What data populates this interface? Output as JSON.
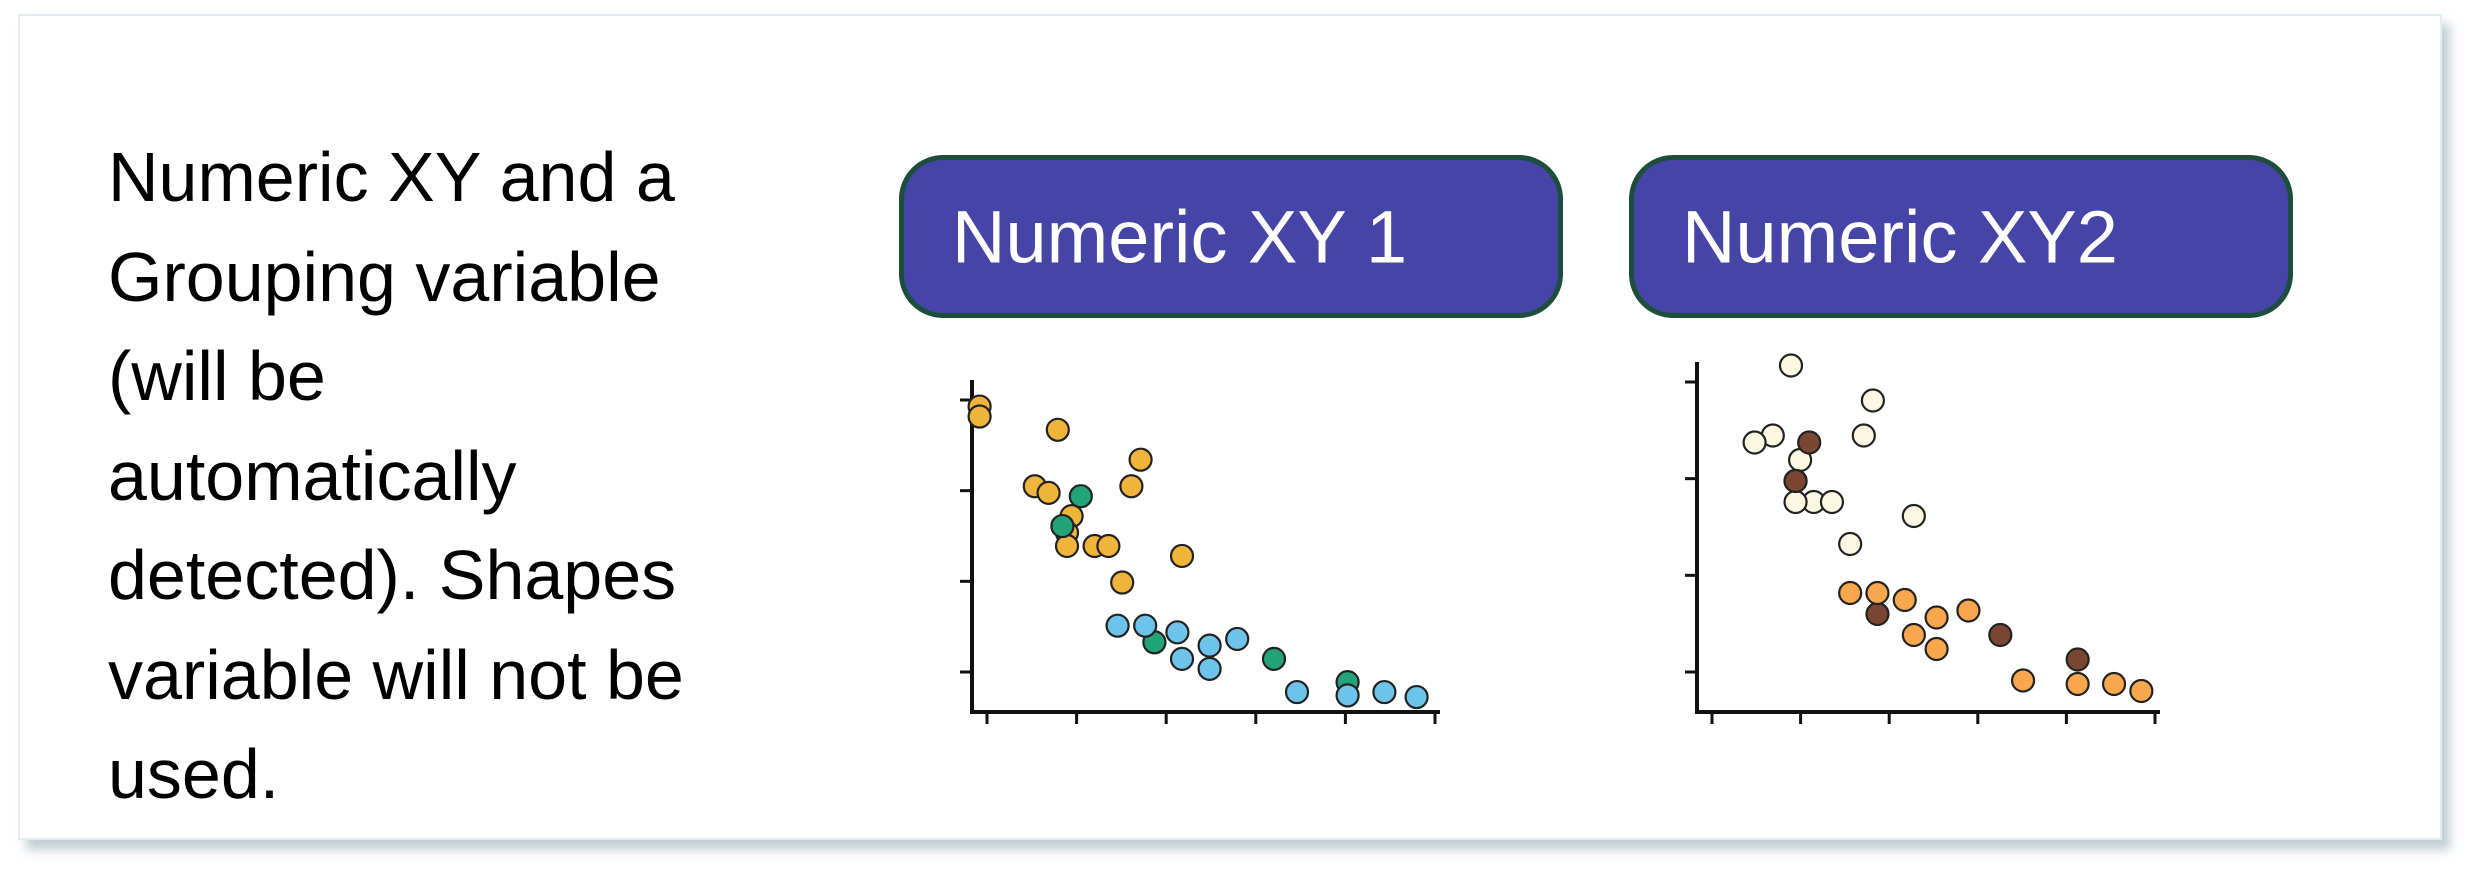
{
  "description": "Numeric XY and a\nGrouping variable\n(will be\nautomatically\ndetected). Shapes\nvariable will not be\nused.",
  "chips": [
    {
      "label": "Numeric XY 1"
    },
    {
      "label": "Numeric XY2"
    }
  ],
  "colors": {
    "chip_fill": "#4545a7",
    "chip_border": "#1d4e3a",
    "plot1_orange": "#f0b43a",
    "plot1_green": "#22a478",
    "plot1_blue": "#6ec3eb",
    "plot2_cream": "#fdf8e2",
    "plot2_brown": "#7b4533",
    "plot2_orange": "#f8a74d"
  },
  "chart_data": [
    {
      "type": "scatter",
      "grid": false,
      "legend": "none",
      "xlim": [
        0,
        10
      ],
      "ylim": [
        0,
        10
      ],
      "x_ticks": 6,
      "y_ticks": 4,
      "series": [
        {
          "color": "#f0b43a",
          "points": [
            {
              "x": 0.1,
              "y": 9.2
            },
            {
              "x": 0.1,
              "y": 8.9
            },
            {
              "x": 1.8,
              "y": 8.5
            },
            {
              "x": 3.6,
              "y": 7.6
            },
            {
              "x": 3.4,
              "y": 6.8
            },
            {
              "x": 1.3,
              "y": 6.8
            },
            {
              "x": 1.6,
              "y": 6.6
            },
            {
              "x": 2.1,
              "y": 5.9
            },
            {
              "x": 2.0,
              "y": 5.4
            },
            {
              "x": 2.6,
              "y": 5.0
            },
            {
              "x": 2.9,
              "y": 5.0
            },
            {
              "x": 2.0,
              "y": 5.0
            },
            {
              "x": 4.5,
              "y": 4.7
            },
            {
              "x": 3.2,
              "y": 3.9
            }
          ]
        },
        {
          "color": "#22a478",
          "points": [
            {
              "x": 2.3,
              "y": 6.5
            },
            {
              "x": 1.9,
              "y": 5.6
            },
            {
              "x": 3.9,
              "y": 2.1
            },
            {
              "x": 6.5,
              "y": 1.6
            },
            {
              "x": 8.1,
              "y": 0.9
            }
          ]
        },
        {
          "color": "#6ec3eb",
          "points": [
            {
              "x": 3.1,
              "y": 2.6
            },
            {
              "x": 3.7,
              "y": 2.6
            },
            {
              "x": 4.4,
              "y": 2.4
            },
            {
              "x": 5.7,
              "y": 2.2
            },
            {
              "x": 5.1,
              "y": 2.0
            },
            {
              "x": 4.5,
              "y": 1.6
            },
            {
              "x": 5.1,
              "y": 1.3
            },
            {
              "x": 7.0,
              "y": 0.6
            },
            {
              "x": 8.1,
              "y": 0.5
            },
            {
              "x": 8.9,
              "y": 0.6
            },
            {
              "x": 9.6,
              "y": 0.45
            }
          ]
        }
      ]
    },
    {
      "type": "scatter",
      "grid": false,
      "legend": "none",
      "xlim": [
        0,
        10
      ],
      "ylim": [
        0,
        10
      ],
      "x_ticks": 6,
      "y_ticks": 4,
      "series": [
        {
          "color": "#fdf8e2",
          "points": [
            {
              "x": 2.0,
              "y": 9.9
            },
            {
              "x": 3.8,
              "y": 8.9
            },
            {
              "x": 1.6,
              "y": 7.9
            },
            {
              "x": 3.6,
              "y": 7.9
            },
            {
              "x": 1.2,
              "y": 7.7
            },
            {
              "x": 2.2,
              "y": 7.2
            },
            {
              "x": 2.1,
              "y": 6.6
            },
            {
              "x": 2.5,
              "y": 6.0
            },
            {
              "x": 2.9,
              "y": 6.0
            },
            {
              "x": 2.1,
              "y": 6.0
            },
            {
              "x": 4.7,
              "y": 5.6
            },
            {
              "x": 3.3,
              "y": 4.8
            }
          ]
        },
        {
          "color": "#7b4533",
          "points": [
            {
              "x": 2.4,
              "y": 7.7
            },
            {
              "x": 2.1,
              "y": 6.6
            },
            {
              "x": 3.9,
              "y": 2.8
            },
            {
              "x": 6.6,
              "y": 2.2
            },
            {
              "x": 8.3,
              "y": 1.5
            }
          ]
        },
        {
          "color": "#f8a74d",
          "points": [
            {
              "x": 3.3,
              "y": 3.4
            },
            {
              "x": 3.9,
              "y": 3.4
            },
            {
              "x": 4.5,
              "y": 3.2
            },
            {
              "x": 5.2,
              "y": 2.7
            },
            {
              "x": 5.9,
              "y": 2.9
            },
            {
              "x": 4.7,
              "y": 2.2
            },
            {
              "x": 5.2,
              "y": 1.8
            },
            {
              "x": 7.1,
              "y": 0.9
            },
            {
              "x": 8.3,
              "y": 0.8
            },
            {
              "x": 9.1,
              "y": 0.8
            },
            {
              "x": 9.7,
              "y": 0.6
            }
          ]
        }
      ]
    }
  ]
}
